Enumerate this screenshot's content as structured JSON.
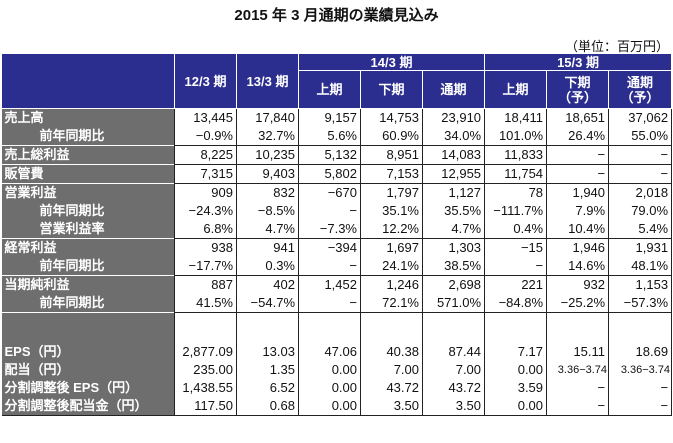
{
  "title": "2015 年 3 月通期の業績見込み",
  "unit": "（単位：百万円）",
  "header": {
    "col_12": "12/3 期",
    "col_13": "13/3 期",
    "group_14": "14/3 期",
    "group_15": "15/3 期",
    "sub_14": [
      "上期",
      "下期",
      "通期"
    ],
    "sub_15": [
      "上期",
      "下期\n（予）",
      "通期\n（予）"
    ]
  },
  "rows": [
    {
      "label": "売上高",
      "values": [
        "13,445",
        "17,840",
        "9,157",
        "14,753",
        "23,910",
        "18,411",
        "18,651",
        "37,062"
      ]
    },
    {
      "label": "前年同期比",
      "values": [
        "−0.9%",
        "32.7%",
        "5.6%",
        "60.9%",
        "34.0%",
        "101.0%",
        "26.4%",
        "55.0%"
      ]
    },
    {
      "label": "売上総利益",
      "values": [
        "8,225",
        "10,235",
        "5,132",
        "8,951",
        "14,083",
        "11,833",
        "−",
        "−"
      ]
    },
    {
      "label": "販管費",
      "values": [
        "7,315",
        "9,403",
        "5,802",
        "7,153",
        "12,955",
        "11,754",
        "−",
        "−"
      ]
    },
    {
      "label": "営業利益",
      "values": [
        "909",
        "832",
        "−670",
        "1,797",
        "1,127",
        "78",
        "1,940",
        "2,018"
      ]
    },
    {
      "label": "前年同期比",
      "values": [
        "−24.3%",
        "−8.5%",
        "−",
        "35.1%",
        "35.5%",
        "−111.7%",
        "7.9%",
        "79.0%"
      ]
    },
    {
      "label": "営業利益率",
      "values": [
        "6.8%",
        "4.7%",
        "−7.3%",
        "12.2%",
        "4.7%",
        "0.4%",
        "10.4%",
        "5.4%"
      ]
    },
    {
      "label": "経常利益",
      "values": [
        "938",
        "941",
        "−394",
        "1,697",
        "1,303",
        "−15",
        "1,946",
        "1,931"
      ]
    },
    {
      "label": "前年同期比",
      "values": [
        "−17.7%",
        "0.3%",
        "−",
        "24.1%",
        "38.5%",
        "−",
        "14.6%",
        "48.1%"
      ]
    },
    {
      "label": "当期純利益",
      "values": [
        "887",
        "402",
        "1,452",
        "1,246",
        "2,698",
        "221",
        "932",
        "1,153"
      ]
    },
    {
      "label": "前年同期比",
      "values": [
        "41.5%",
        "−54.7%",
        "−",
        "72.1%",
        "571.0%",
        "−84.8%",
        "−25.2%",
        "−57.3%"
      ]
    },
    {
      "label": "EPS（円）",
      "values": [
        "2,877.09",
        "13.03",
        "47.06",
        "40.38",
        "87.44",
        "7.17",
        "15.11",
        "18.69"
      ]
    },
    {
      "label": "配当（円）",
      "values": [
        "235.00",
        "1.35",
        "0.00",
        "7.00",
        "7.00",
        "0.00",
        "3.36−3.74",
        "3.36−3.74"
      ]
    },
    {
      "label": "分割調整後 EPS（円）",
      "values": [
        "1,438.55",
        "6.52",
        "0.00",
        "43.72",
        "43.72",
        "3.59",
        "−",
        "−"
      ]
    },
    {
      "label": "分割調整後配当金（円）",
      "values": [
        "117.50",
        "0.68",
        "0.00",
        "3.50",
        "3.50",
        "0.00",
        "−",
        "−"
      ]
    }
  ]
}
